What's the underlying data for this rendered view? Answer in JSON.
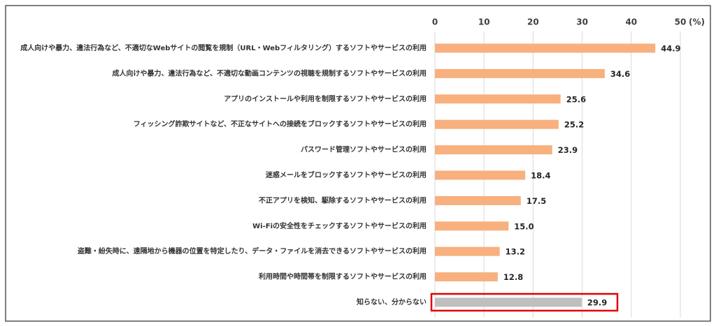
{
  "chart_data": {
    "type": "bar",
    "orientation": "horizontal",
    "categories": [
      "成人向けや暴力、違法行為など、不適切なWebサイトの閲覧を規制（URL・Webフィルタリング）するソフトやサービスの利用",
      "成人向けや暴力、違法行為など、不適切な動画コンテンツの視聴を規制するソフトやサービスの利用",
      "アプリのインストールや利用を制限するソフトやサービスの利用",
      "フィッシング詐欺サイトなど、不正なサイトへの接続をブロックするソフトやサービスの利用",
      "パスワード管理ソフトやサービスの利用",
      "迷惑メールをブロックするソフトやサービスの利用",
      "不正アプリを検知、駆除するソフトやサービスの利用",
      "Wi-Fiの安全性をチェックするソフトやサービスの利用",
      "盗難・紛失時に、遠隔地から機器の位置を特定したり、データ・ファイルを消去できるソフトやサービスの利用",
      "利用時間や時間帯を制限するソフトやサービスの利用",
      "知らない、分からない"
    ],
    "values": [
      44.9,
      34.6,
      25.6,
      25.2,
      23.9,
      18.4,
      17.5,
      15.0,
      13.2,
      12.8,
      29.9
    ],
    "value_labels": [
      "44.9",
      "34.6",
      "25.6",
      "25.2",
      "23.9",
      "18.4",
      "17.5",
      "15.0",
      "13.2",
      "12.8",
      "29.9"
    ],
    "colors": [
      "#f7b07e",
      "#f7b07e",
      "#f7b07e",
      "#f7b07e",
      "#f7b07e",
      "#f7b07e",
      "#f7b07e",
      "#f7b07e",
      "#f7b07e",
      "#f7b07e",
      "#bfbfbf"
    ],
    "xlim": [
      0,
      50
    ],
    "xticks": [
      0,
      10,
      20,
      30,
      40,
      50
    ],
    "unit": "(%)",
    "grid": true
  }
}
